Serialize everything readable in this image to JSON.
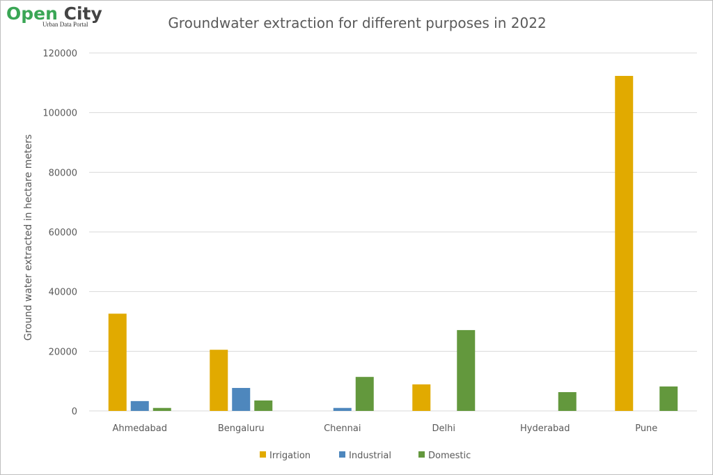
{
  "logo": {
    "text_open": "Open ",
    "text_city": "City",
    "subtitle": "Urban Data Portal"
  },
  "chart_data": {
    "type": "bar",
    "title": "Groundwater extraction for different purposes in 2022",
    "xlabel": "",
    "ylabel": "Ground water extracted in hectare meters",
    "ylim": [
      0,
      120000
    ],
    "yticks": [
      0,
      20000,
      40000,
      60000,
      80000,
      100000,
      120000
    ],
    "grid": true,
    "legend": "bottom",
    "categories": [
      "Ahmedabad",
      "Bengaluru",
      "Chennai",
      "Delhi",
      "Hyderabad",
      "Pune"
    ],
    "series": [
      {
        "name": "Irrigation",
        "color": "#e1aa00",
        "values": [
          32600,
          20500,
          0,
          8900,
          0,
          112300
        ]
      },
      {
        "name": "Industrial",
        "color": "#4e87bd",
        "values": [
          3300,
          7700,
          1000,
          0,
          0,
          0
        ]
      },
      {
        "name": "Domestic",
        "color": "#63983d",
        "values": [
          1000,
          3500,
          11400,
          27100,
          6300,
          8200
        ]
      }
    ]
  }
}
